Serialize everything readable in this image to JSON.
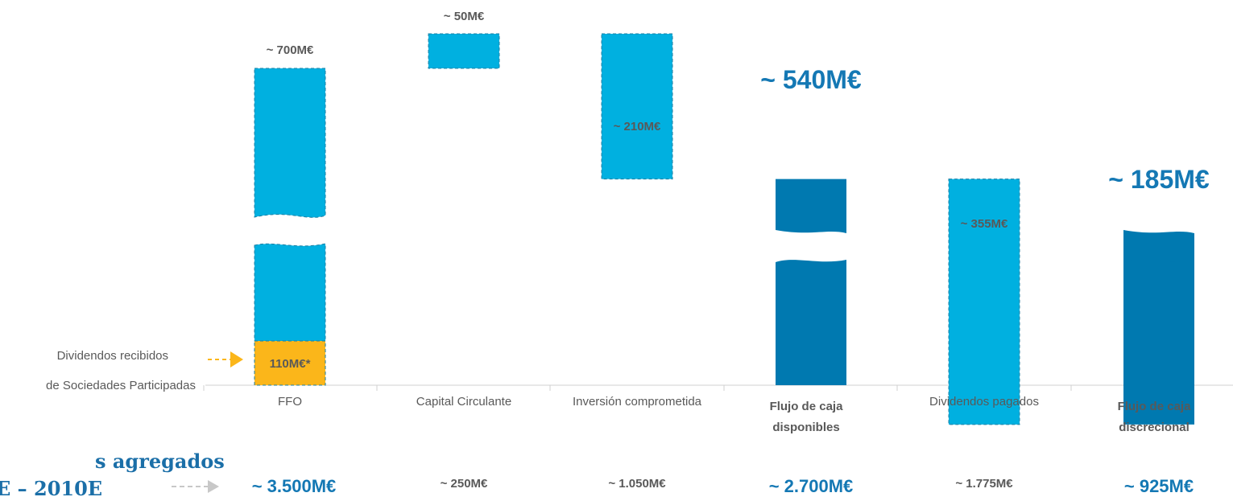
{
  "chart_data": {
    "type": "bar",
    "categories": [
      {
        "lines": [
          "FFO"
        ],
        "bold": false
      },
      {
        "lines": [
          "Capital Circulante"
        ],
        "bold": false
      },
      {
        "lines": [
          "Inversión comprometida"
        ],
        "bold": false
      },
      {
        "lines": [
          "Flujo de caja",
          "disponibles"
        ],
        "bold": true
      },
      {
        "lines": [
          "Dividendos pagados"
        ],
        "bold": false
      },
      {
        "lines": [
          "Flujo de caja",
          "discrecional"
        ],
        "bold": true
      }
    ],
    "annual_labels": [
      "~ 700M€",
      "~ 50M€",
      "~ 210M€",
      "~ 540M€",
      "~ 355M€",
      "~ 185M€"
    ],
    "annual_values": [
      700,
      50,
      210,
      540,
      355,
      185
    ],
    "bar_kind": [
      "increase",
      "increase",
      "decrease",
      "total",
      "decrease",
      "total"
    ],
    "segment": {
      "label": "110M€*",
      "value": 110,
      "of_category": 0
    },
    "segment_note": [
      "Dividendos recibidos",
      "de Sociedades Participadas"
    ],
    "aggregate": {
      "title": [
        "s agregados",
        "E – 2010E"
      ],
      "labels": [
        "~ 3.500M€",
        "~ 250M€",
        "~ 1.050M€",
        "~ 2.700M€",
        "~ 1.775M€",
        "~ 925M€"
      ],
      "highlight": [
        true,
        false,
        false,
        true,
        false,
        true
      ]
    },
    "colors": {
      "increase": "#00b0e0",
      "decrease": "#00b0e0",
      "total": "#0079b0",
      "segment": "#fbb61a",
      "text": "#595959",
      "highlight": "#1478b4",
      "arrow_segment": "#fbb61a",
      "arrow_aggregate": "#c8c8c8"
    }
  }
}
